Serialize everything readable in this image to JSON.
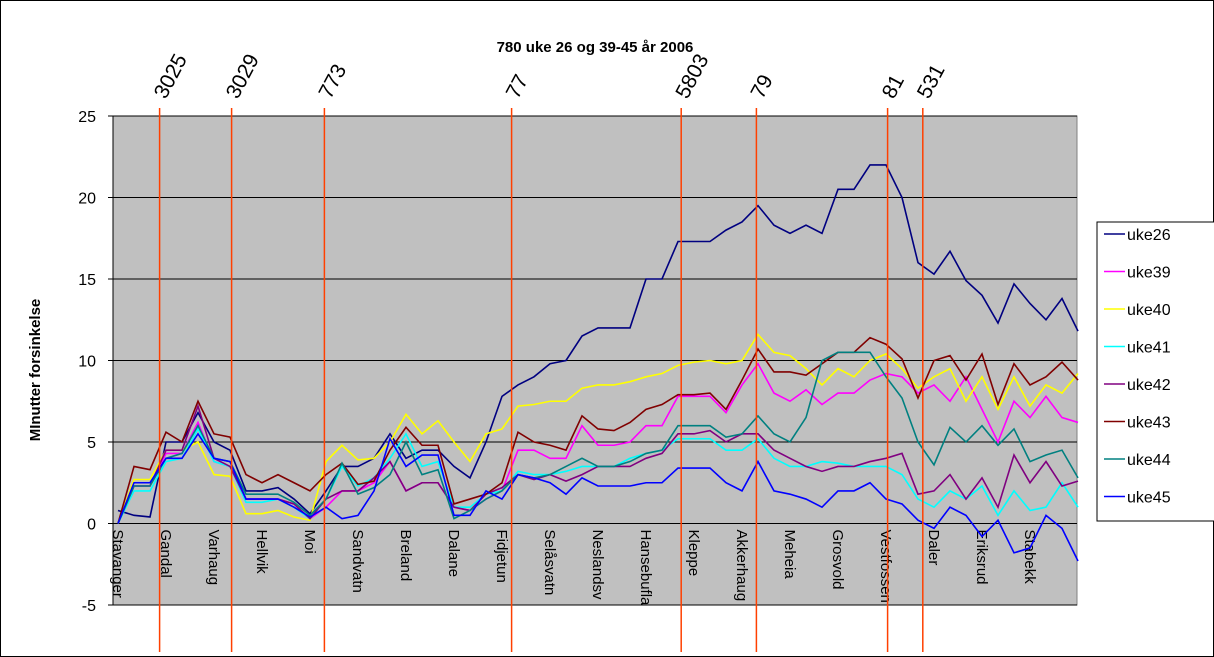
{
  "chart_data": {
    "type": "line",
    "title": "780 uke 26 og 39-45 år 2006",
    "y_label": "MInutter forsinkelse",
    "ylim": [
      -5,
      25
    ],
    "yticks": [
      -5,
      0,
      5,
      10,
      15,
      20,
      25
    ],
    "grid": true,
    "plot_background": "#c0c0c0",
    "legend": "right",
    "categories": [
      "Stavanger",
      null,
      null,
      "Gandal",
      null,
      null,
      "Varhaug",
      null,
      null,
      "Hellvik",
      null,
      null,
      "Moi",
      null,
      null,
      "Sandvatn",
      null,
      null,
      "Breland",
      null,
      null,
      "Dalane",
      null,
      null,
      "Fidjetun",
      null,
      null,
      "Selåsvatn",
      null,
      null,
      "Neslandsv",
      null,
      null,
      "Hansebufla",
      null,
      null,
      "Kleppe",
      null,
      null,
      "Akkerhaug",
      null,
      null,
      "Meheia",
      null,
      null,
      "Grosvold",
      null,
      null,
      "Vestfossen",
      null,
      null,
      "Daler",
      null,
      null,
      "Eriksrud",
      null,
      null,
      "Stabekk",
      null,
      null,
      null
    ],
    "marker_color": "#ff4000",
    "markers": [
      {
        "label": "3025",
        "x": 2.6
      },
      {
        "label": "3029",
        "x": 7.1
      },
      {
        "label": "773",
        "x": 12.9
      },
      {
        "label": "77",
        "x": 24.6
      },
      {
        "label": "5803",
        "x": 35.2
      },
      {
        "label": "79",
        "x": 39.9
      },
      {
        "label": "81",
        "x": 48.1
      },
      {
        "label": "531",
        "x": 50.3
      }
    ],
    "series": [
      {
        "name": "uke26",
        "color": "#000080",
        "values": [
          0.8,
          0.5,
          0.4,
          5.0,
          5.0,
          6.8,
          5.0,
          4.5,
          2.0,
          2.0,
          2.2,
          1.5,
          0.6,
          2.0,
          3.5,
          3.5,
          4.0,
          5.5,
          4.0,
          4.5,
          4.5,
          3.5,
          2.8,
          5.0,
          7.8,
          8.5,
          9.0,
          9.8,
          10.0,
          11.5,
          12.0,
          12.0,
          12.0,
          15.0,
          15.0,
          17.3,
          17.3,
          17.3,
          18.0,
          18.5,
          19.5,
          18.3,
          17.8,
          18.3,
          17.8,
          20.5,
          20.5,
          22.0,
          22.0,
          20.0,
          16.0,
          15.3,
          16.7,
          14.9,
          14.0,
          12.3,
          14.7,
          13.5,
          12.5,
          13.8,
          11.8
        ]
      },
      {
        "name": "uke39",
        "color": "#ff00ff",
        "values": [
          0,
          2.3,
          2.3,
          4.3,
          4.3,
          6.2,
          3.8,
          3.5,
          1.5,
          1.5,
          1.5,
          1.2,
          0.3,
          1.0,
          2.0,
          2.0,
          2.5,
          3.8,
          2.0,
          2.5,
          2.5,
          1.0,
          0.8,
          1.5,
          2.0,
          4.5,
          4.5,
          4.0,
          4.0,
          6.0,
          4.8,
          4.8,
          5.0,
          6.0,
          6.0,
          7.8,
          7.8,
          7.8,
          6.8,
          8.5,
          9.8,
          8.0,
          7.5,
          8.2,
          7.3,
          8.0,
          8.0,
          8.8,
          9.2,
          9.0,
          8.0,
          8.5,
          7.5,
          9.0,
          7.0,
          5.0,
          7.5,
          6.5,
          7.8,
          6.5,
          6.2
        ]
      },
      {
        "name": "uke40",
        "color": "#ffff00",
        "values": [
          0,
          2.7,
          2.7,
          4.5,
          4.5,
          5.0,
          3.0,
          2.9,
          0.6,
          0.6,
          0.8,
          0.4,
          0.2,
          3.8,
          4.8,
          3.9,
          4.0,
          5.0,
          6.7,
          5.5,
          6.3,
          5.0,
          3.8,
          5.5,
          5.8,
          7.2,
          7.3,
          7.5,
          7.5,
          8.3,
          8.5,
          8.5,
          8.7,
          9.0,
          9.2,
          9.7,
          9.9,
          10.0,
          9.8,
          10.0,
          11.6,
          10.5,
          10.3,
          9.5,
          8.5,
          9.5,
          9.0,
          10.0,
          10.4,
          9.5,
          8.3,
          9.0,
          9.5,
          7.5,
          9.0,
          7.0,
          9.0,
          7.2,
          8.5,
          8.0,
          9.2
        ]
      },
      {
        "name": "uke41",
        "color": "#00ffff",
        "values": [
          0,
          2.0,
          2.0,
          3.8,
          4.0,
          5.8,
          3.8,
          3.5,
          1.3,
          1.3,
          1.5,
          1.0,
          0.3,
          1.5,
          3.5,
          2.3,
          2.8,
          4.0,
          5.5,
          3.5,
          3.8,
          1.0,
          1.0,
          1.8,
          2.0,
          3.2,
          3.0,
          3.0,
          3.2,
          3.5,
          3.5,
          3.5,
          4.0,
          4.3,
          4.5,
          5.2,
          5.2,
          5.2,
          4.5,
          4.5,
          5.2,
          4.0,
          3.5,
          3.5,
          3.8,
          3.7,
          3.5,
          3.5,
          3.5,
          3.0,
          1.5,
          1.0,
          2.0,
          1.5,
          2.3,
          0.5,
          2.0,
          0.8,
          1.0,
          2.5,
          1.0
        ]
      },
      {
        "name": "uke42",
        "color": "#800080",
        "values": [
          0,
          2.3,
          2.3,
          4.5,
          4.5,
          7.2,
          4.0,
          3.5,
          1.5,
          1.5,
          1.5,
          1.2,
          0.3,
          1.5,
          2.0,
          2.0,
          2.8,
          3.8,
          2.0,
          2.5,
          2.5,
          1.0,
          0.8,
          1.8,
          2.2,
          3.0,
          2.7,
          3.0,
          2.6,
          3.0,
          3.5,
          3.5,
          3.5,
          4.0,
          4.3,
          5.5,
          5.5,
          5.7,
          5.0,
          5.5,
          5.5,
          4.5,
          4.0,
          3.5,
          3.2,
          3.5,
          3.5,
          3.8,
          4.0,
          4.3,
          1.8,
          2.0,
          3.0,
          1.5,
          2.8,
          1.0,
          4.2,
          2.5,
          3.8,
          2.3,
          2.6
        ]
      },
      {
        "name": "uke43",
        "color": "#800000",
        "values": [
          0,
          3.5,
          3.3,
          5.6,
          5.0,
          7.5,
          5.5,
          5.3,
          3.0,
          2.5,
          3.0,
          2.5,
          2.0,
          3.0,
          3.7,
          2.4,
          2.6,
          4.5,
          5.9,
          4.8,
          4.8,
          1.2,
          1.5,
          1.8,
          2.5,
          5.6,
          5.0,
          4.8,
          4.5,
          6.6,
          5.8,
          5.7,
          6.2,
          7.0,
          7.3,
          7.9,
          7.9,
          8.0,
          7.0,
          8.8,
          10.7,
          9.3,
          9.3,
          9.1,
          9.8,
          10.5,
          10.5,
          11.4,
          11.0,
          10.1,
          7.7,
          10.0,
          10.3,
          8.8,
          10.4,
          7.3,
          9.8,
          8.5,
          9.0,
          9.9,
          8.8
        ]
      },
      {
        "name": "uke44",
        "color": "#008080",
        "values": [
          0,
          2.3,
          2.3,
          4.0,
          4.3,
          6.0,
          4.0,
          3.8,
          1.8,
          1.8,
          1.8,
          1.3,
          0.5,
          1.5,
          3.7,
          1.8,
          2.2,
          3.0,
          5.0,
          3.0,
          3.3,
          0.3,
          0.8,
          1.5,
          2.0,
          3.0,
          2.8,
          3.0,
          3.5,
          4.0,
          3.5,
          3.5,
          3.8,
          4.3,
          4.5,
          6.0,
          6.0,
          6.0,
          5.3,
          5.5,
          6.6,
          5.5,
          5.0,
          6.5,
          10.0,
          10.5,
          10.5,
          10.5,
          9.0,
          7.7,
          5.0,
          3.6,
          5.9,
          5.0,
          6.0,
          4.8,
          5.8,
          3.8,
          4.2,
          4.5,
          2.8
        ]
      },
      {
        "name": "uke45",
        "color": "#0000ff",
        "values": [
          0,
          2.5,
          2.5,
          4.0,
          4.0,
          5.5,
          4.0,
          3.8,
          1.5,
          1.5,
          1.5,
          1.0,
          0.4,
          1.0,
          0.3,
          0.5,
          2.0,
          5.2,
          3.5,
          4.2,
          4.2,
          0.5,
          0.5,
          2.0,
          1.5,
          3.0,
          2.8,
          2.5,
          1.8,
          2.8,
          2.3,
          2.3,
          2.3,
          2.5,
          2.5,
          3.4,
          3.4,
          3.4,
          2.5,
          2.0,
          3.8,
          2.0,
          1.8,
          1.5,
          1.0,
          2.0,
          2.0,
          2.5,
          1.5,
          1.2,
          0.2,
          -0.3,
          1.0,
          0.5,
          -0.8,
          0.2,
          -1.8,
          -1.5,
          0.5,
          -0.3,
          -2.3
        ]
      }
    ]
  }
}
